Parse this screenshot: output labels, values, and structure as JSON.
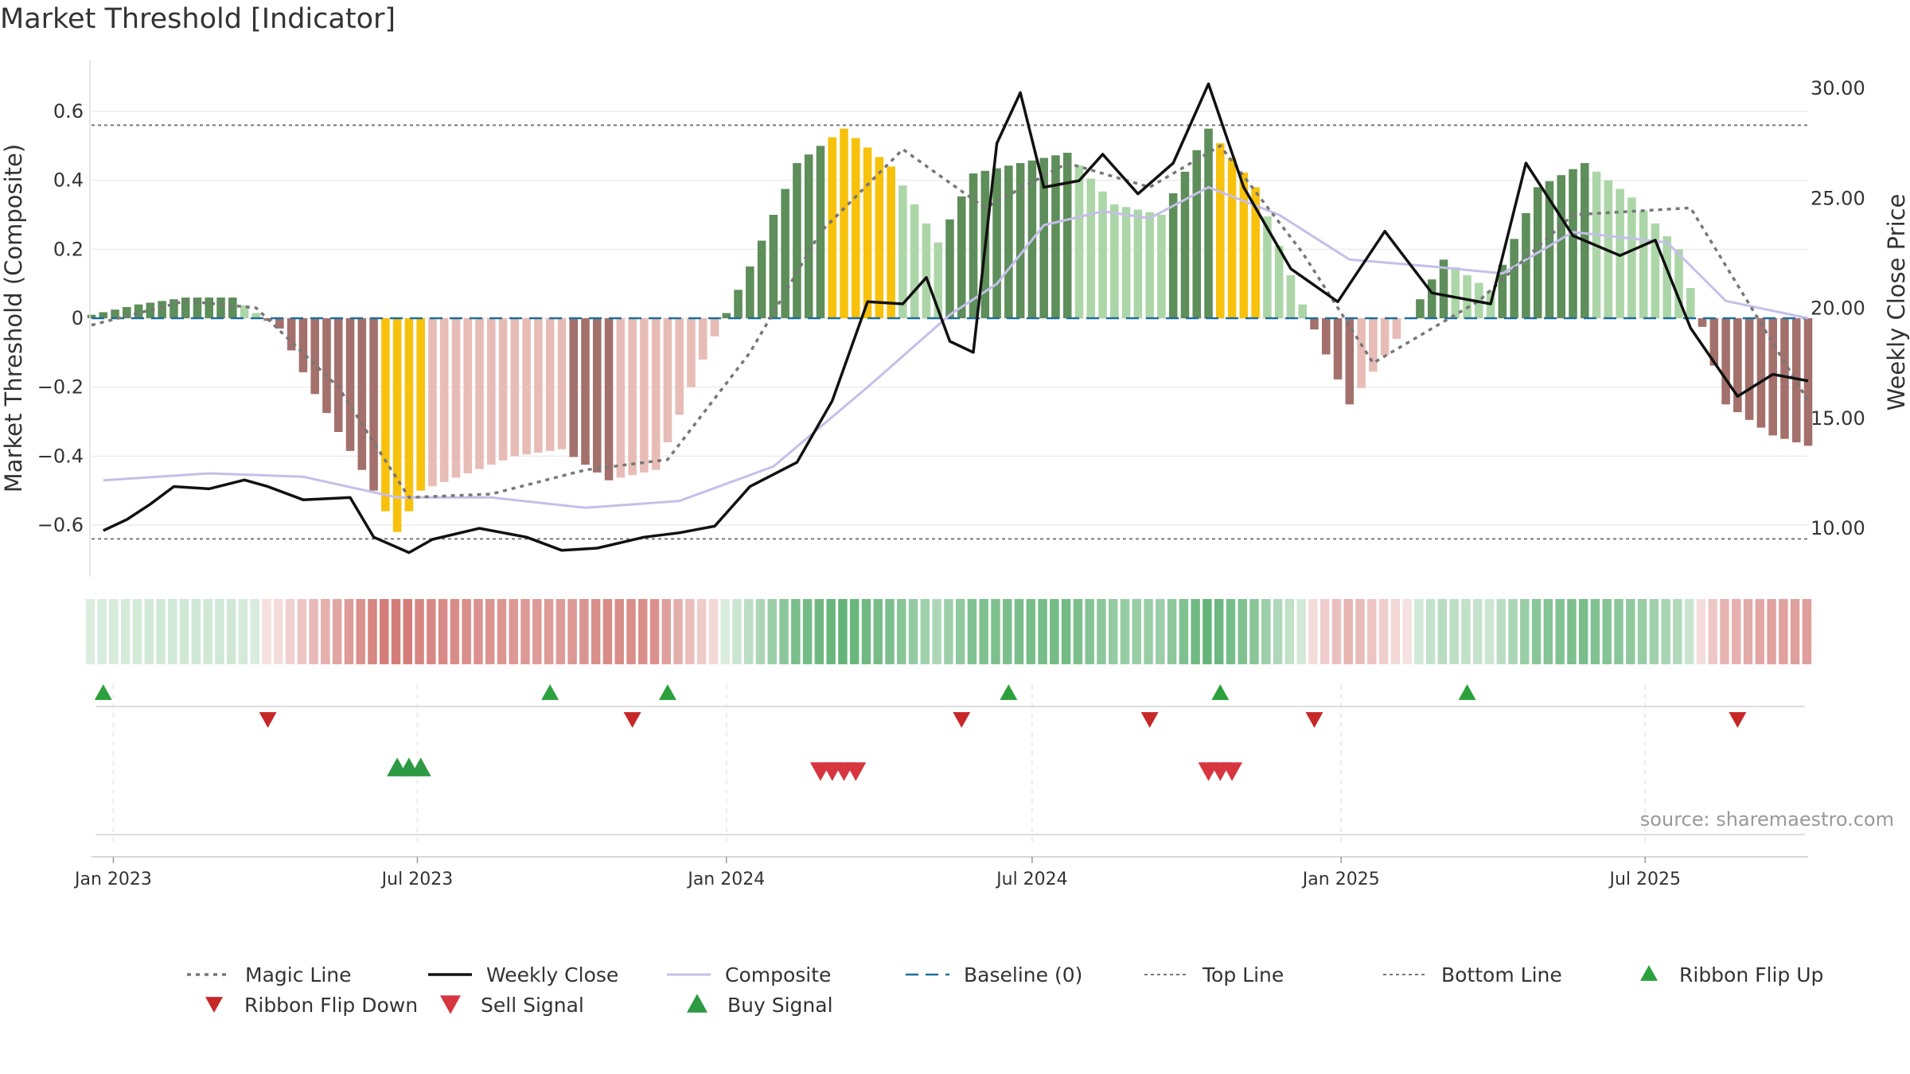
{
  "title": "Market Threshold [Indicator]",
  "source_note": "source: sharemaestro.com",
  "colors": {
    "strong_up": "#5e8e5a",
    "weak_up": "#acd6a7",
    "strong_down": "#a4706c",
    "weak_down": "#e8bcb6",
    "extreme": "#f7c10c",
    "weekly_close": "#111111",
    "composite": "#c5bfe8",
    "magic_line": "#777777",
    "baseline": "#1f6f9a",
    "threshold": "#777777",
    "flip_up": "#2ca03c",
    "flip_down": "#c62828",
    "buy": "#2e9a44",
    "sell": "#d7363f"
  },
  "chart_data": {
    "type": "bar",
    "left_axis": {
      "label": "Market Threshold (Composite)",
      "ticks": [
        "0.6",
        "0.4",
        "0.2",
        "0",
        "−0.2",
        "−0.4",
        "−0.6"
      ],
      "tick_values": [
        0.6,
        0.4,
        0.2,
        0,
        -0.2,
        -0.4,
        -0.6
      ],
      "range": [
        -0.75,
        0.75
      ]
    },
    "right_axis": {
      "label": "Weekly Close Price",
      "ticks": [
        "30.00",
        "25.00",
        "20.00",
        "15.00",
        "10.00"
      ],
      "tick_values": [
        30,
        25,
        20,
        15,
        10
      ],
      "range": [
        7.8,
        31.3
      ]
    },
    "x_axis": {
      "ticks": [
        "Jan 2023",
        "Jul 2023",
        "Jan 2024",
        "Jul 2024",
        "Jan 2025",
        "Jul 2025"
      ],
      "tick_dates": [
        "2023-01-01",
        "2023-07-01",
        "2024-01-01",
        "2024-07-01",
        "2025-01-01",
        "2025-07-01"
      ],
      "range": [
        "2022-12-19",
        "2025-10-06"
      ]
    },
    "top_line": 0.56,
    "bottom_line": -0.64,
    "baseline": 0,
    "composite_series": [
      {
        "x": "2022-12-19",
        "y": 0.01
      },
      {
        "x": "2023-01-16",
        "y": 0.04
      },
      {
        "x": "2023-02-13",
        "y": 0.06
      },
      {
        "x": "2023-03-13",
        "y": 0.06
      },
      {
        "x": "2023-04-10",
        "y": -0.03
      },
      {
        "x": "2023-05-01",
        "y": -0.22
      },
      {
        "x": "2023-05-29",
        "y": -0.44
      },
      {
        "x": "2023-06-19",
        "y": -0.62
      },
      {
        "x": "2023-07-03",
        "y": -0.5
      },
      {
        "x": "2023-07-31",
        "y": -0.45
      },
      {
        "x": "2023-08-28",
        "y": -0.4
      },
      {
        "x": "2023-09-25",
        "y": -0.38
      },
      {
        "x": "2023-10-23",
        "y": -0.47
      },
      {
        "x": "2023-11-20",
        "y": -0.44
      },
      {
        "x": "2023-12-18",
        "y": -0.12
      },
      {
        "x": "2024-01-15",
        "y": 0.15
      },
      {
        "x": "2024-02-12",
        "y": 0.45
      },
      {
        "x": "2024-03-11",
        "y": 0.55
      },
      {
        "x": "2024-04-08",
        "y": 0.44
      },
      {
        "x": "2024-05-06",
        "y": 0.22
      },
      {
        "x": "2024-05-27",
        "y": 0.42
      },
      {
        "x": "2024-06-24",
        "y": 0.45
      },
      {
        "x": "2024-07-22",
        "y": 0.48
      },
      {
        "x": "2024-08-19",
        "y": 0.33
      },
      {
        "x": "2024-09-16",
        "y": 0.3
      },
      {
        "x": "2024-10-14",
        "y": 0.55
      },
      {
        "x": "2024-11-11",
        "y": 0.38
      },
      {
        "x": "2024-12-09",
        "y": 0.04
      },
      {
        "x": "2025-01-06",
        "y": -0.25
      },
      {
        "x": "2025-02-03",
        "y": -0.06
      },
      {
        "x": "2025-03-03",
        "y": 0.17
      },
      {
        "x": "2025-03-31",
        "y": 0.08
      },
      {
        "x": "2025-04-28",
        "y": 0.38
      },
      {
        "x": "2025-05-26",
        "y": 0.45
      },
      {
        "x": "2025-06-23",
        "y": 0.35
      },
      {
        "x": "2025-07-21",
        "y": 0.2
      },
      {
        "x": "2025-08-18",
        "y": -0.25
      },
      {
        "x": "2025-09-15",
        "y": -0.34
      },
      {
        "x": "2025-10-06",
        "y": -0.37
      }
    ],
    "extreme_periods": [
      [
        "2023-06-12",
        "2023-07-03"
      ],
      [
        "2024-03-04",
        "2024-04-08"
      ],
      [
        "2024-10-21",
        "2024-11-11"
      ]
    ],
    "weekly_close": [
      {
        "x": "2022-12-26",
        "y": 9.9
      },
      {
        "x": "2023-01-09",
        "y": 10.4
      },
      {
        "x": "2023-01-23",
        "y": 11.1
      },
      {
        "x": "2023-02-06",
        "y": 11.9
      },
      {
        "x": "2023-02-27",
        "y": 11.8
      },
      {
        "x": "2023-03-20",
        "y": 12.2
      },
      {
        "x": "2023-04-03",
        "y": 11.9
      },
      {
        "x": "2023-04-24",
        "y": 11.3
      },
      {
        "x": "2023-05-22",
        "y": 11.4
      },
      {
        "x": "2023-06-05",
        "y": 9.6
      },
      {
        "x": "2023-06-26",
        "y": 8.9
      },
      {
        "x": "2023-07-10",
        "y": 9.5
      },
      {
        "x": "2023-08-07",
        "y": 10.0
      },
      {
        "x": "2023-09-04",
        "y": 9.6
      },
      {
        "x": "2023-09-25",
        "y": 9.0
      },
      {
        "x": "2023-10-16",
        "y": 9.1
      },
      {
        "x": "2023-11-13",
        "y": 9.6
      },
      {
        "x": "2023-12-04",
        "y": 9.8
      },
      {
        "x": "2023-12-25",
        "y": 10.1
      },
      {
        "x": "2024-01-15",
        "y": 11.9
      },
      {
        "x": "2024-02-12",
        "y": 13.0
      },
      {
        "x": "2024-03-04",
        "y": 15.8
      },
      {
        "x": "2024-03-25",
        "y": 20.3
      },
      {
        "x": "2024-04-15",
        "y": 20.2
      },
      {
        "x": "2024-04-29",
        "y": 21.4
      },
      {
        "x": "2024-05-13",
        "y": 18.5
      },
      {
        "x": "2024-05-27",
        "y": 18.0
      },
      {
        "x": "2024-06-10",
        "y": 27.5
      },
      {
        "x": "2024-06-24",
        "y": 29.8
      },
      {
        "x": "2024-07-08",
        "y": 25.5
      },
      {
        "x": "2024-07-29",
        "y": 25.8
      },
      {
        "x": "2024-08-12",
        "y": 27.0
      },
      {
        "x": "2024-09-02",
        "y": 25.2
      },
      {
        "x": "2024-09-23",
        "y": 26.6
      },
      {
        "x": "2024-10-14",
        "y": 30.2
      },
      {
        "x": "2024-11-04",
        "y": 25.5
      },
      {
        "x": "2024-12-02",
        "y": 21.8
      },
      {
        "x": "2024-12-30",
        "y": 20.3
      },
      {
        "x": "2025-01-27",
        "y": 23.5
      },
      {
        "x": "2025-02-24",
        "y": 20.7
      },
      {
        "x": "2025-03-31",
        "y": 20.2
      },
      {
        "x": "2025-04-21",
        "y": 26.6
      },
      {
        "x": "2025-05-19",
        "y": 23.3
      },
      {
        "x": "2025-06-16",
        "y": 22.4
      },
      {
        "x": "2025-07-07",
        "y": 23.1
      },
      {
        "x": "2025-07-28",
        "y": 19.1
      },
      {
        "x": "2025-08-25",
        "y": 16.0
      },
      {
        "x": "2025-09-15",
        "y": 17.0
      },
      {
        "x": "2025-10-06",
        "y": 16.7
      }
    ],
    "composite_line": [
      {
        "x": "2022-12-26",
        "y": -0.47
      },
      {
        "x": "2023-02-27",
        "y": -0.45
      },
      {
        "x": "2023-04-24",
        "y": -0.46
      },
      {
        "x": "2023-06-19",
        "y": -0.52
      },
      {
        "x": "2023-08-14",
        "y": -0.52
      },
      {
        "x": "2023-10-09",
        "y": -0.55
      },
      {
        "x": "2023-12-04",
        "y": -0.53
      },
      {
        "x": "2024-01-29",
        "y": -0.43
      },
      {
        "x": "2024-03-25",
        "y": -0.2
      },
      {
        "x": "2024-05-13",
        "y": 0.01
      },
      {
        "x": "2024-06-10",
        "y": 0.1
      },
      {
        "x": "2024-07-08",
        "y": 0.27
      },
      {
        "x": "2024-08-12",
        "y": 0.31
      },
      {
        "x": "2024-09-09",
        "y": 0.29
      },
      {
        "x": "2024-10-14",
        "y": 0.38
      },
      {
        "x": "2024-11-25",
        "y": 0.3
      },
      {
        "x": "2025-01-06",
        "y": 0.17
      },
      {
        "x": "2025-02-24",
        "y": 0.15
      },
      {
        "x": "2025-04-07",
        "y": 0.13
      },
      {
        "x": "2025-05-19",
        "y": 0.25
      },
      {
        "x": "2025-07-14",
        "y": 0.22
      },
      {
        "x": "2025-08-18",
        "y": 0.05
      },
      {
        "x": "2025-10-06",
        "y": 0.0
      }
    ],
    "magic_line": [
      {
        "x": "2022-12-19",
        "y": -0.02
      },
      {
        "x": "2023-02-13",
        "y": 0.05
      },
      {
        "x": "2023-03-27",
        "y": 0.03
      },
      {
        "x": "2023-05-15",
        "y": -0.2
      },
      {
        "x": "2023-06-26",
        "y": -0.52
      },
      {
        "x": "2023-08-14",
        "y": -0.51
      },
      {
        "x": "2023-10-09",
        "y": -0.44
      },
      {
        "x": "2023-11-27",
        "y": -0.41
      },
      {
        "x": "2024-01-15",
        "y": -0.1
      },
      {
        "x": "2024-02-26",
        "y": 0.25
      },
      {
        "x": "2024-04-15",
        "y": 0.49
      },
      {
        "x": "2024-06-03",
        "y": 0.32
      },
      {
        "x": "2024-07-22",
        "y": 0.45
      },
      {
        "x": "2024-09-09",
        "y": 0.38
      },
      {
        "x": "2024-10-21",
        "y": 0.5
      },
      {
        "x": "2024-12-09",
        "y": 0.19
      },
      {
        "x": "2025-01-20",
        "y": -0.13
      },
      {
        "x": "2025-03-24",
        "y": 0.05
      },
      {
        "x": "2025-05-19",
        "y": 0.3
      },
      {
        "x": "2025-07-28",
        "y": 0.32
      },
      {
        "x": "2025-10-06",
        "y": -0.24
      }
    ],
    "ribbon_flip_up": [
      "2022-12-26",
      "2023-09-18",
      "2023-11-27",
      "2024-06-17",
      "2024-10-21",
      "2025-03-17"
    ],
    "ribbon_flip_down": [
      "2023-04-03",
      "2023-11-06",
      "2024-05-20",
      "2024-09-09",
      "2024-12-16",
      "2025-08-25"
    ],
    "buy_signal": [
      "2023-06-19",
      "2023-06-26",
      "2023-07-03"
    ],
    "sell_signal": [
      "2024-02-26",
      "2024-03-04",
      "2024-03-11",
      "2024-03-18",
      "2024-10-14",
      "2024-10-21",
      "2024-10-28"
    ],
    "legend": [
      "Magic Line",
      "Weekly Close",
      "Composite",
      "Baseline (0)",
      "Top Line",
      "Bottom Line",
      "Ribbon Flip Up",
      "Ribbon Flip Down",
      "Sell Signal",
      "Buy Signal"
    ]
  }
}
